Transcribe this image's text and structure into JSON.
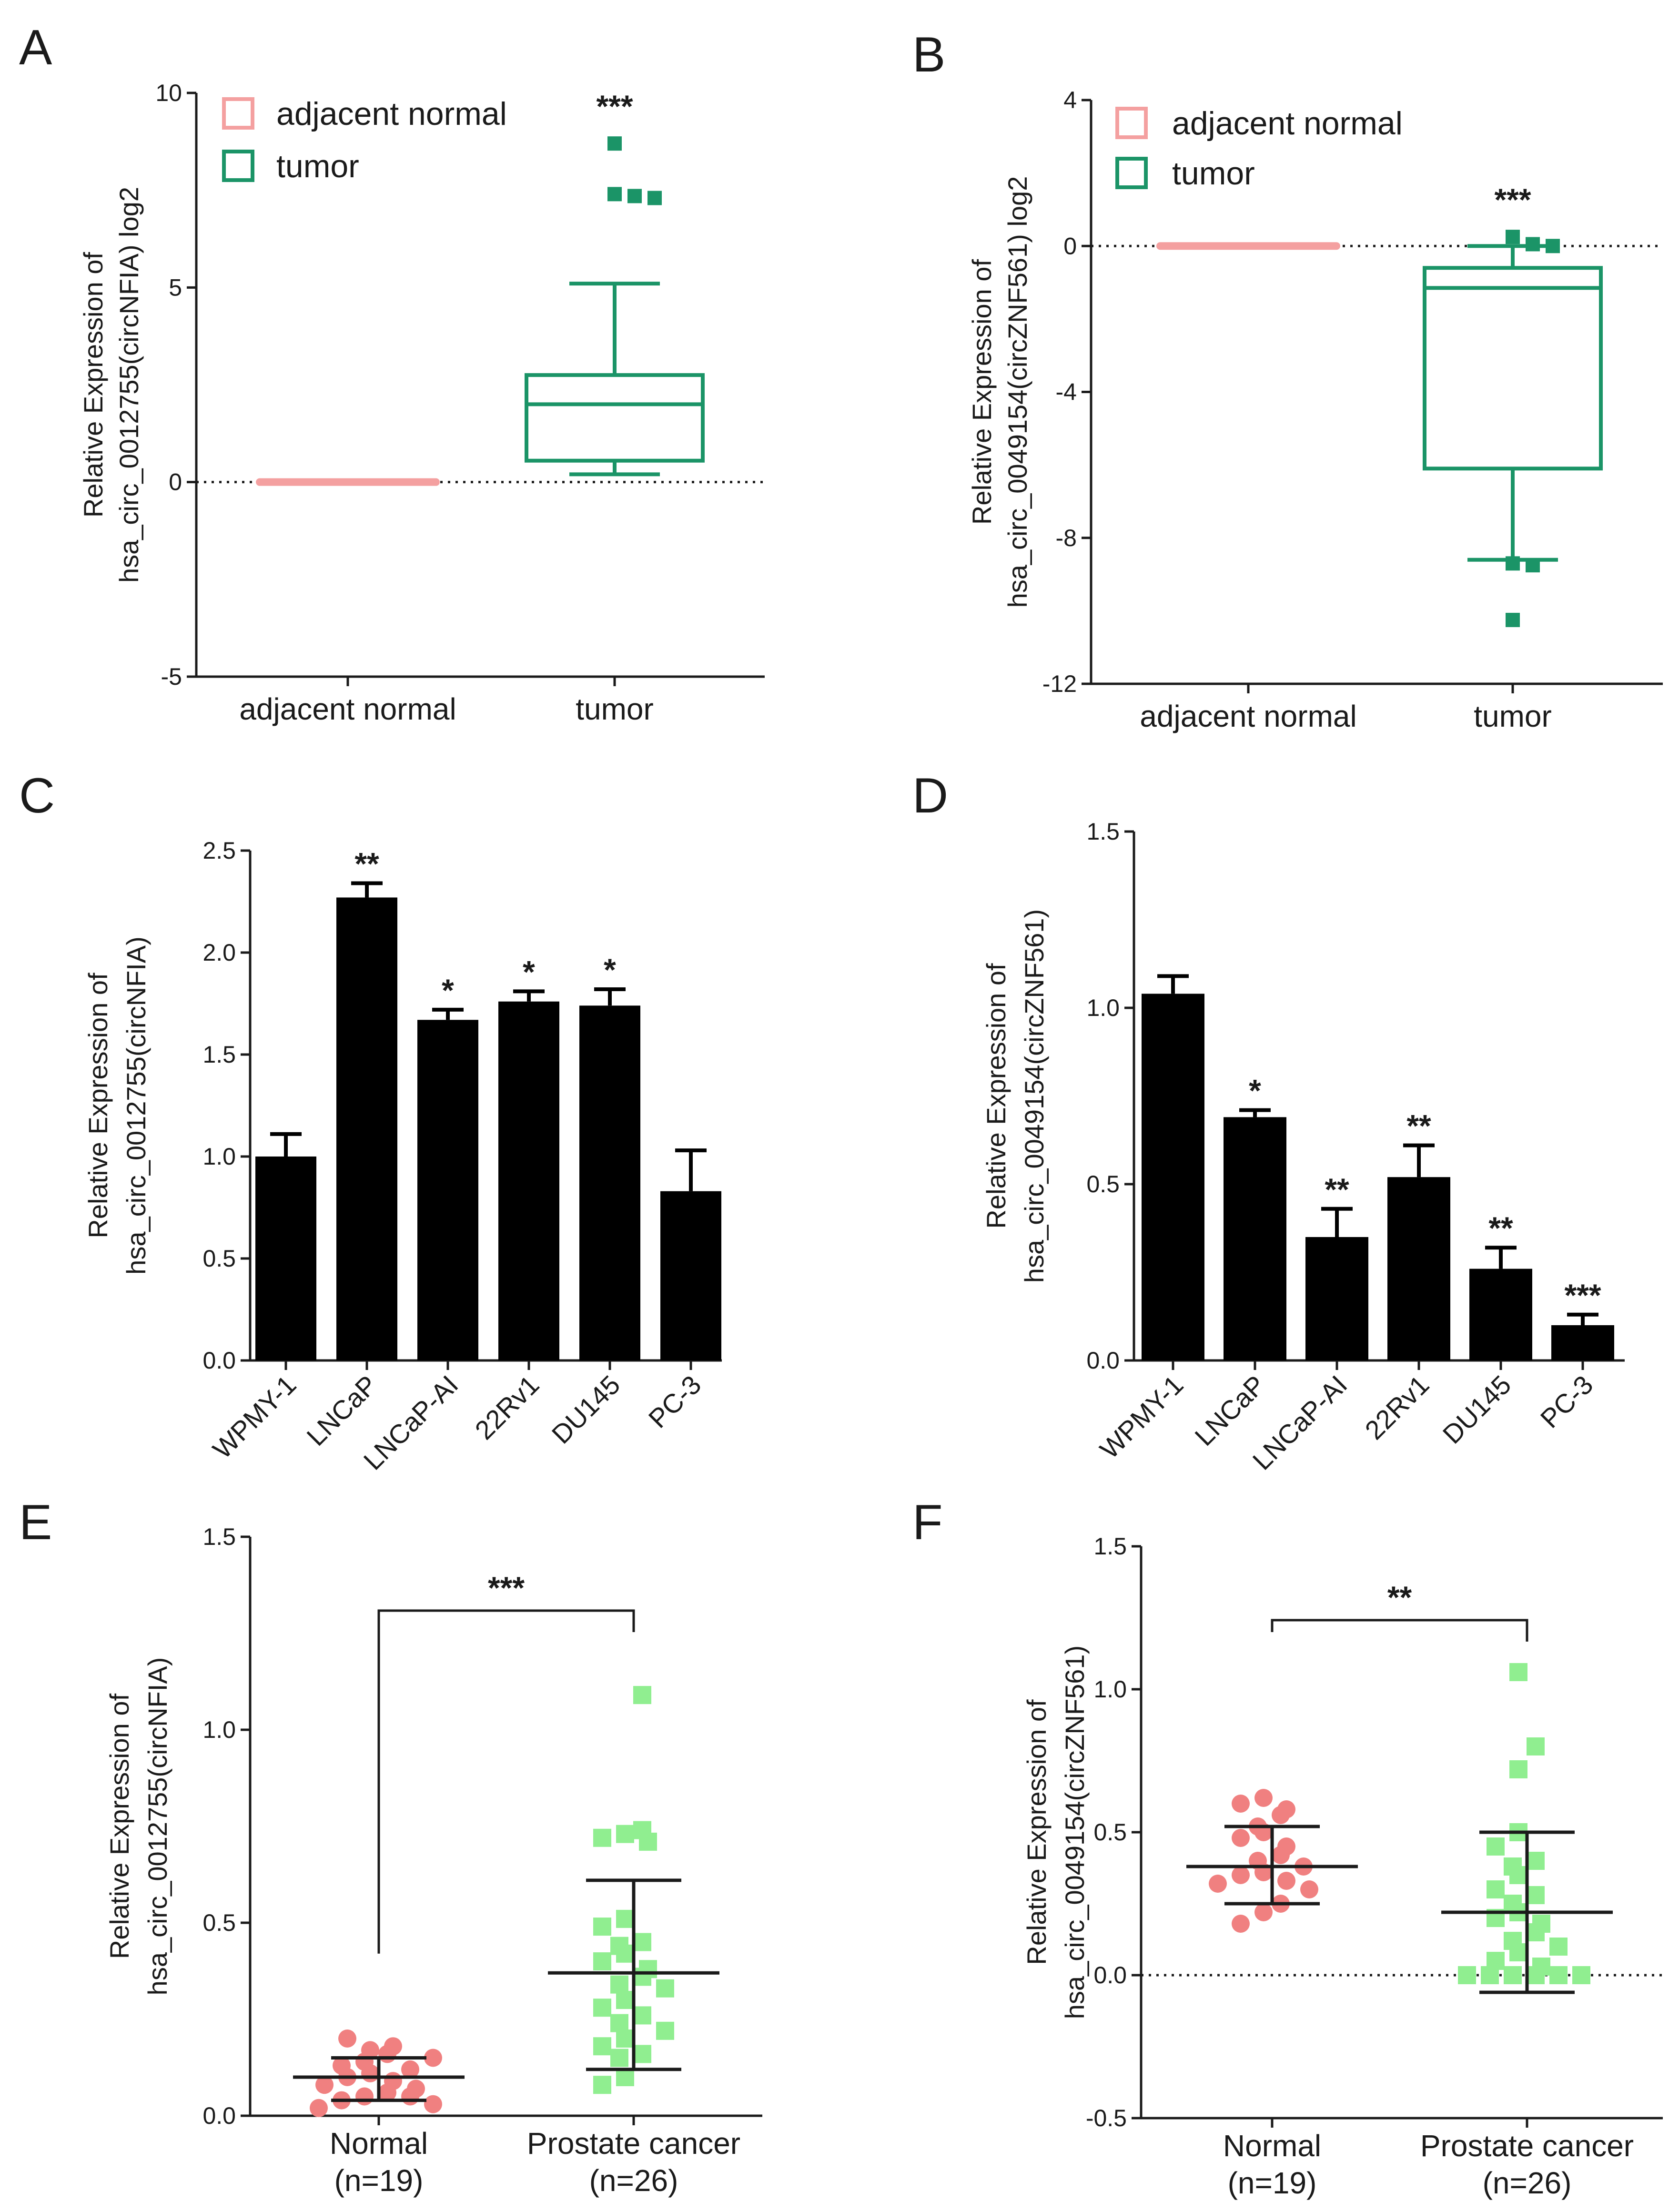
{
  "colors": {
    "normal_box": "#F4A0A0",
    "tumor_box": "#1B9467",
    "bar": "#000000",
    "normal_dot": "#F08080",
    "cancer_dot": "#90EE90",
    "axis": "#1a1a1a"
  },
  "chart_data": [
    {
      "panel": "A",
      "type": "box",
      "ylabel_line1": "Relative Expression of",
      "ylabel_line2": "hsa_circ_0012755(circNFIA) log2",
      "ylim": [
        -5,
        10
      ],
      "yticks": [
        -5,
        0,
        5,
        10
      ],
      "ytick_labels": [
        "-5",
        "0",
        "5",
        "10"
      ],
      "reference_line": 0,
      "categories": [
        "adjacent normal",
        "tumor"
      ],
      "legend": [
        "adjacent normal",
        "tumor"
      ],
      "boxes": [
        {
          "name": "adjacent normal",
          "min": 0,
          "q1": 0,
          "median": 0,
          "q3": 0,
          "max": 0,
          "outliers": []
        },
        {
          "name": "tumor",
          "min": 0.2,
          "q1": 0.55,
          "median": 2.0,
          "q3": 2.75,
          "max": 5.1,
          "outliers": [
            8.7,
            7.4,
            7.35,
            7.3
          ]
        }
      ],
      "significance": "***"
    },
    {
      "panel": "B",
      "type": "box",
      "ylabel_line1": "Relative Expression of",
      "ylabel_line2": "hsa_circ_0049154(circZNF561) log2",
      "ylim": [
        -12,
        4
      ],
      "yticks": [
        -12,
        -8,
        -4,
        0,
        4
      ],
      "ytick_labels": [
        "-12",
        "-8",
        "-4",
        "0",
        "4"
      ],
      "reference_line": 0,
      "categories": [
        "adjacent normal",
        "tumor"
      ],
      "legend": [
        "adjacent normal",
        "tumor"
      ],
      "boxes": [
        {
          "name": "adjacent normal",
          "min": 0,
          "q1": 0,
          "median": 0,
          "q3": 0,
          "max": 0,
          "outliers": []
        },
        {
          "name": "tumor",
          "min": -8.6,
          "q1": -6.1,
          "median": -1.15,
          "q3": -0.6,
          "max": 0.0,
          "outliers": [
            0.25,
            0.05,
            0.0,
            -8.7,
            -8.75,
            -10.25
          ]
        }
      ],
      "significance": "***"
    },
    {
      "panel": "C",
      "type": "bar",
      "ylabel_line1": "Relative Expression of",
      "ylabel_line2": "hsa_circ_0012755(circNFIA)",
      "ylim": [
        0,
        2.5
      ],
      "yticks": [
        0,
        0.5,
        1.0,
        1.5,
        2.0,
        2.5
      ],
      "ytick_labels": [
        "0.0",
        "0.5",
        "1.0",
        "1.5",
        "2.0",
        "2.5"
      ],
      "categories": [
        "WPMY-1",
        "LNCaP",
        "LNCaP-AI",
        "22Rv1",
        "DU145",
        "PC-3"
      ],
      "values": [
        1.0,
        2.27,
        1.67,
        1.76,
        1.74,
        0.83
      ],
      "errors": [
        0.11,
        0.07,
        0.05,
        0.05,
        0.08,
        0.2
      ],
      "significance": [
        "",
        "**",
        "*",
        "*",
        "*",
        ""
      ]
    },
    {
      "panel": "D",
      "type": "bar",
      "ylabel_line1": "Relative Expression of",
      "ylabel_line2": "hsa_circ_0049154(circZNF561)",
      "ylim": [
        0,
        1.5
      ],
      "yticks": [
        0,
        0.5,
        1.0,
        1.5
      ],
      "ytick_labels": [
        "0.0",
        "0.5",
        "1.0",
        "1.5"
      ],
      "categories": [
        "WPMY-1",
        "LNCaP",
        "LNCaP-AI",
        "22Rv1",
        "DU145",
        "PC-3"
      ],
      "values": [
        1.04,
        0.69,
        0.35,
        0.52,
        0.26,
        0.1
      ],
      "errors": [
        0.05,
        0.02,
        0.08,
        0.09,
        0.06,
        0.03
      ],
      "significance": [
        "",
        "*",
        "**",
        "**",
        "**",
        "***"
      ]
    },
    {
      "panel": "E",
      "type": "scatter",
      "ylabel_line1": "Relative Expression of",
      "ylabel_line2": "hsa_circ_0012755(circNFIA)",
      "ylim": [
        0,
        1.5
      ],
      "yticks": [
        0,
        0.5,
        1.0,
        1.5
      ],
      "ytick_labels": [
        "0.0",
        "0.5",
        "1.0",
        "1.5"
      ],
      "categories_line1": [
        "Normal",
        "Prostate cancer"
      ],
      "categories_line2": [
        "(n=19)",
        "(n=26)"
      ],
      "groups": [
        {
          "name": "Normal",
          "mean": 0.1,
          "sd_low": 0.04,
          "sd_high": 0.15,
          "points": [
            0.17,
            0.16,
            0.2,
            0.18,
            0.14,
            0.12,
            0.13,
            0.11,
            0.1,
            0.09,
            0.08,
            0.07,
            0.06,
            0.05,
            0.05,
            0.04,
            0.03,
            0.02,
            0.15
          ]
        },
        {
          "name": "Prostate cancer",
          "mean": 0.37,
          "sd_low": 0.12,
          "sd_high": 0.61,
          "points": [
            1.09,
            0.74,
            0.73,
            0.72,
            0.71,
            0.51,
            0.49,
            0.45,
            0.44,
            0.42,
            0.4,
            0.38,
            0.36,
            0.34,
            0.33,
            0.3,
            0.28,
            0.26,
            0.24,
            0.22,
            0.2,
            0.18,
            0.16,
            0.15,
            0.1,
            0.08
          ]
        }
      ],
      "significance": "***"
    },
    {
      "panel": "F",
      "type": "scatter",
      "ylabel_line1": "Relative Expression of",
      "ylabel_line2": "hsa_circ_0049154(circZNF561)",
      "ylim": [
        -0.5,
        1.5
      ],
      "yticks": [
        -0.5,
        0,
        0.5,
        1.0,
        1.5
      ],
      "ytick_labels": [
        "-0.5",
        "0.0",
        "0.5",
        "1.0",
        "1.5"
      ],
      "reference_line": 0,
      "categories_line1": [
        "Normal",
        "Prostate cancer"
      ],
      "categories_line2": [
        "(n=19)",
        "(n=26)"
      ],
      "groups": [
        {
          "name": "Normal",
          "mean": 0.38,
          "sd_low": 0.25,
          "sd_high": 0.52,
          "points": [
            0.62,
            0.6,
            0.58,
            0.56,
            0.52,
            0.5,
            0.48,
            0.45,
            0.42,
            0.4,
            0.38,
            0.36,
            0.35,
            0.33,
            0.32,
            0.3,
            0.25,
            0.22,
            0.18
          ]
        },
        {
          "name": "Prostate cancer",
          "mean": 0.22,
          "sd_low": -0.06,
          "sd_high": 0.5,
          "points": [
            1.06,
            0.8,
            0.72,
            0.5,
            0.45,
            0.4,
            0.38,
            0.35,
            0.3,
            0.28,
            0.25,
            0.22,
            0.2,
            0.18,
            0.15,
            0.12,
            0.1,
            0.08,
            0.05,
            0.03,
            0.0,
            0.0,
            0.0,
            0.0,
            0.0,
            0.0
          ]
        }
      ],
      "significance": "**"
    }
  ]
}
